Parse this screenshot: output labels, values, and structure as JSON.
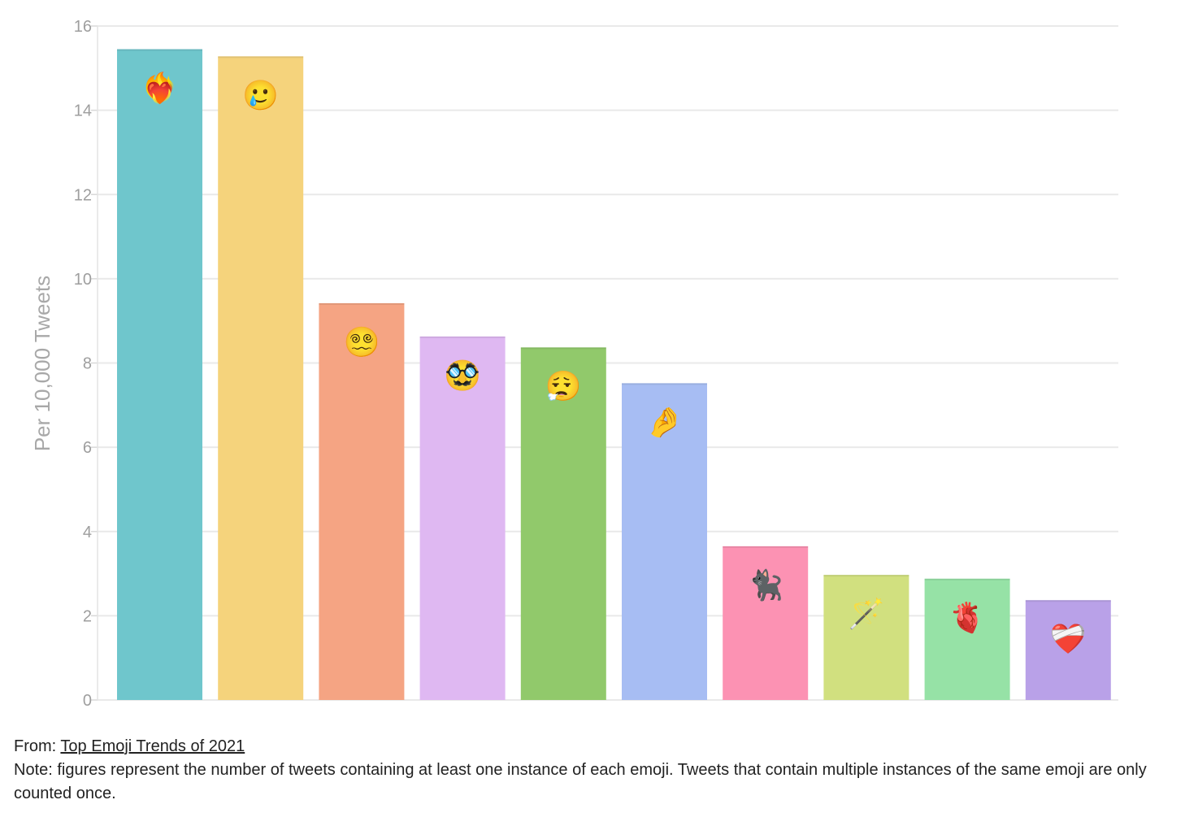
{
  "chart_data": {
    "type": "bar",
    "title": "",
    "xlabel": "",
    "ylabel": "Per 10,000 Tweets",
    "ylim": [
      0,
      16
    ],
    "yticks": [
      0,
      2,
      4,
      6,
      8,
      10,
      12,
      14,
      16
    ],
    "grid": true,
    "categories": [
      "heart-on-fire",
      "face-holding-back-tears",
      "face-with-spiral-eyes",
      "disguised-face",
      "face-exhaling",
      "pinched-fingers",
      "black-cat",
      "magic-wand",
      "anatomical-heart",
      "mending-heart"
    ],
    "emojis": [
      "❤️‍🔥",
      "🥲",
      "😵‍💫",
      "🥸",
      "😮‍💨",
      "🤌",
      "🐈‍⬛",
      "🪄",
      "🫀",
      "❤️‍🩹"
    ],
    "values": [
      15.45,
      15.28,
      9.42,
      8.63,
      8.37,
      7.52,
      3.65,
      2.97,
      2.88,
      2.37
    ],
    "colors": [
      "#6fc6cc",
      "#f5d37c",
      "#f5a483",
      "#dfb8f2",
      "#91c96b",
      "#a7bdf3",
      "#fc92b3",
      "#d1e07f",
      "#96e2a6",
      "#b9a1e8"
    ]
  },
  "footer": {
    "from_label": "From: ",
    "source_link": "Top Emoji Trends of 2021",
    "note": "Note: figures represent the number of tweets containing at least one instance of each emoji. Tweets that contain multiple instances of the same emoji are only counted once."
  }
}
